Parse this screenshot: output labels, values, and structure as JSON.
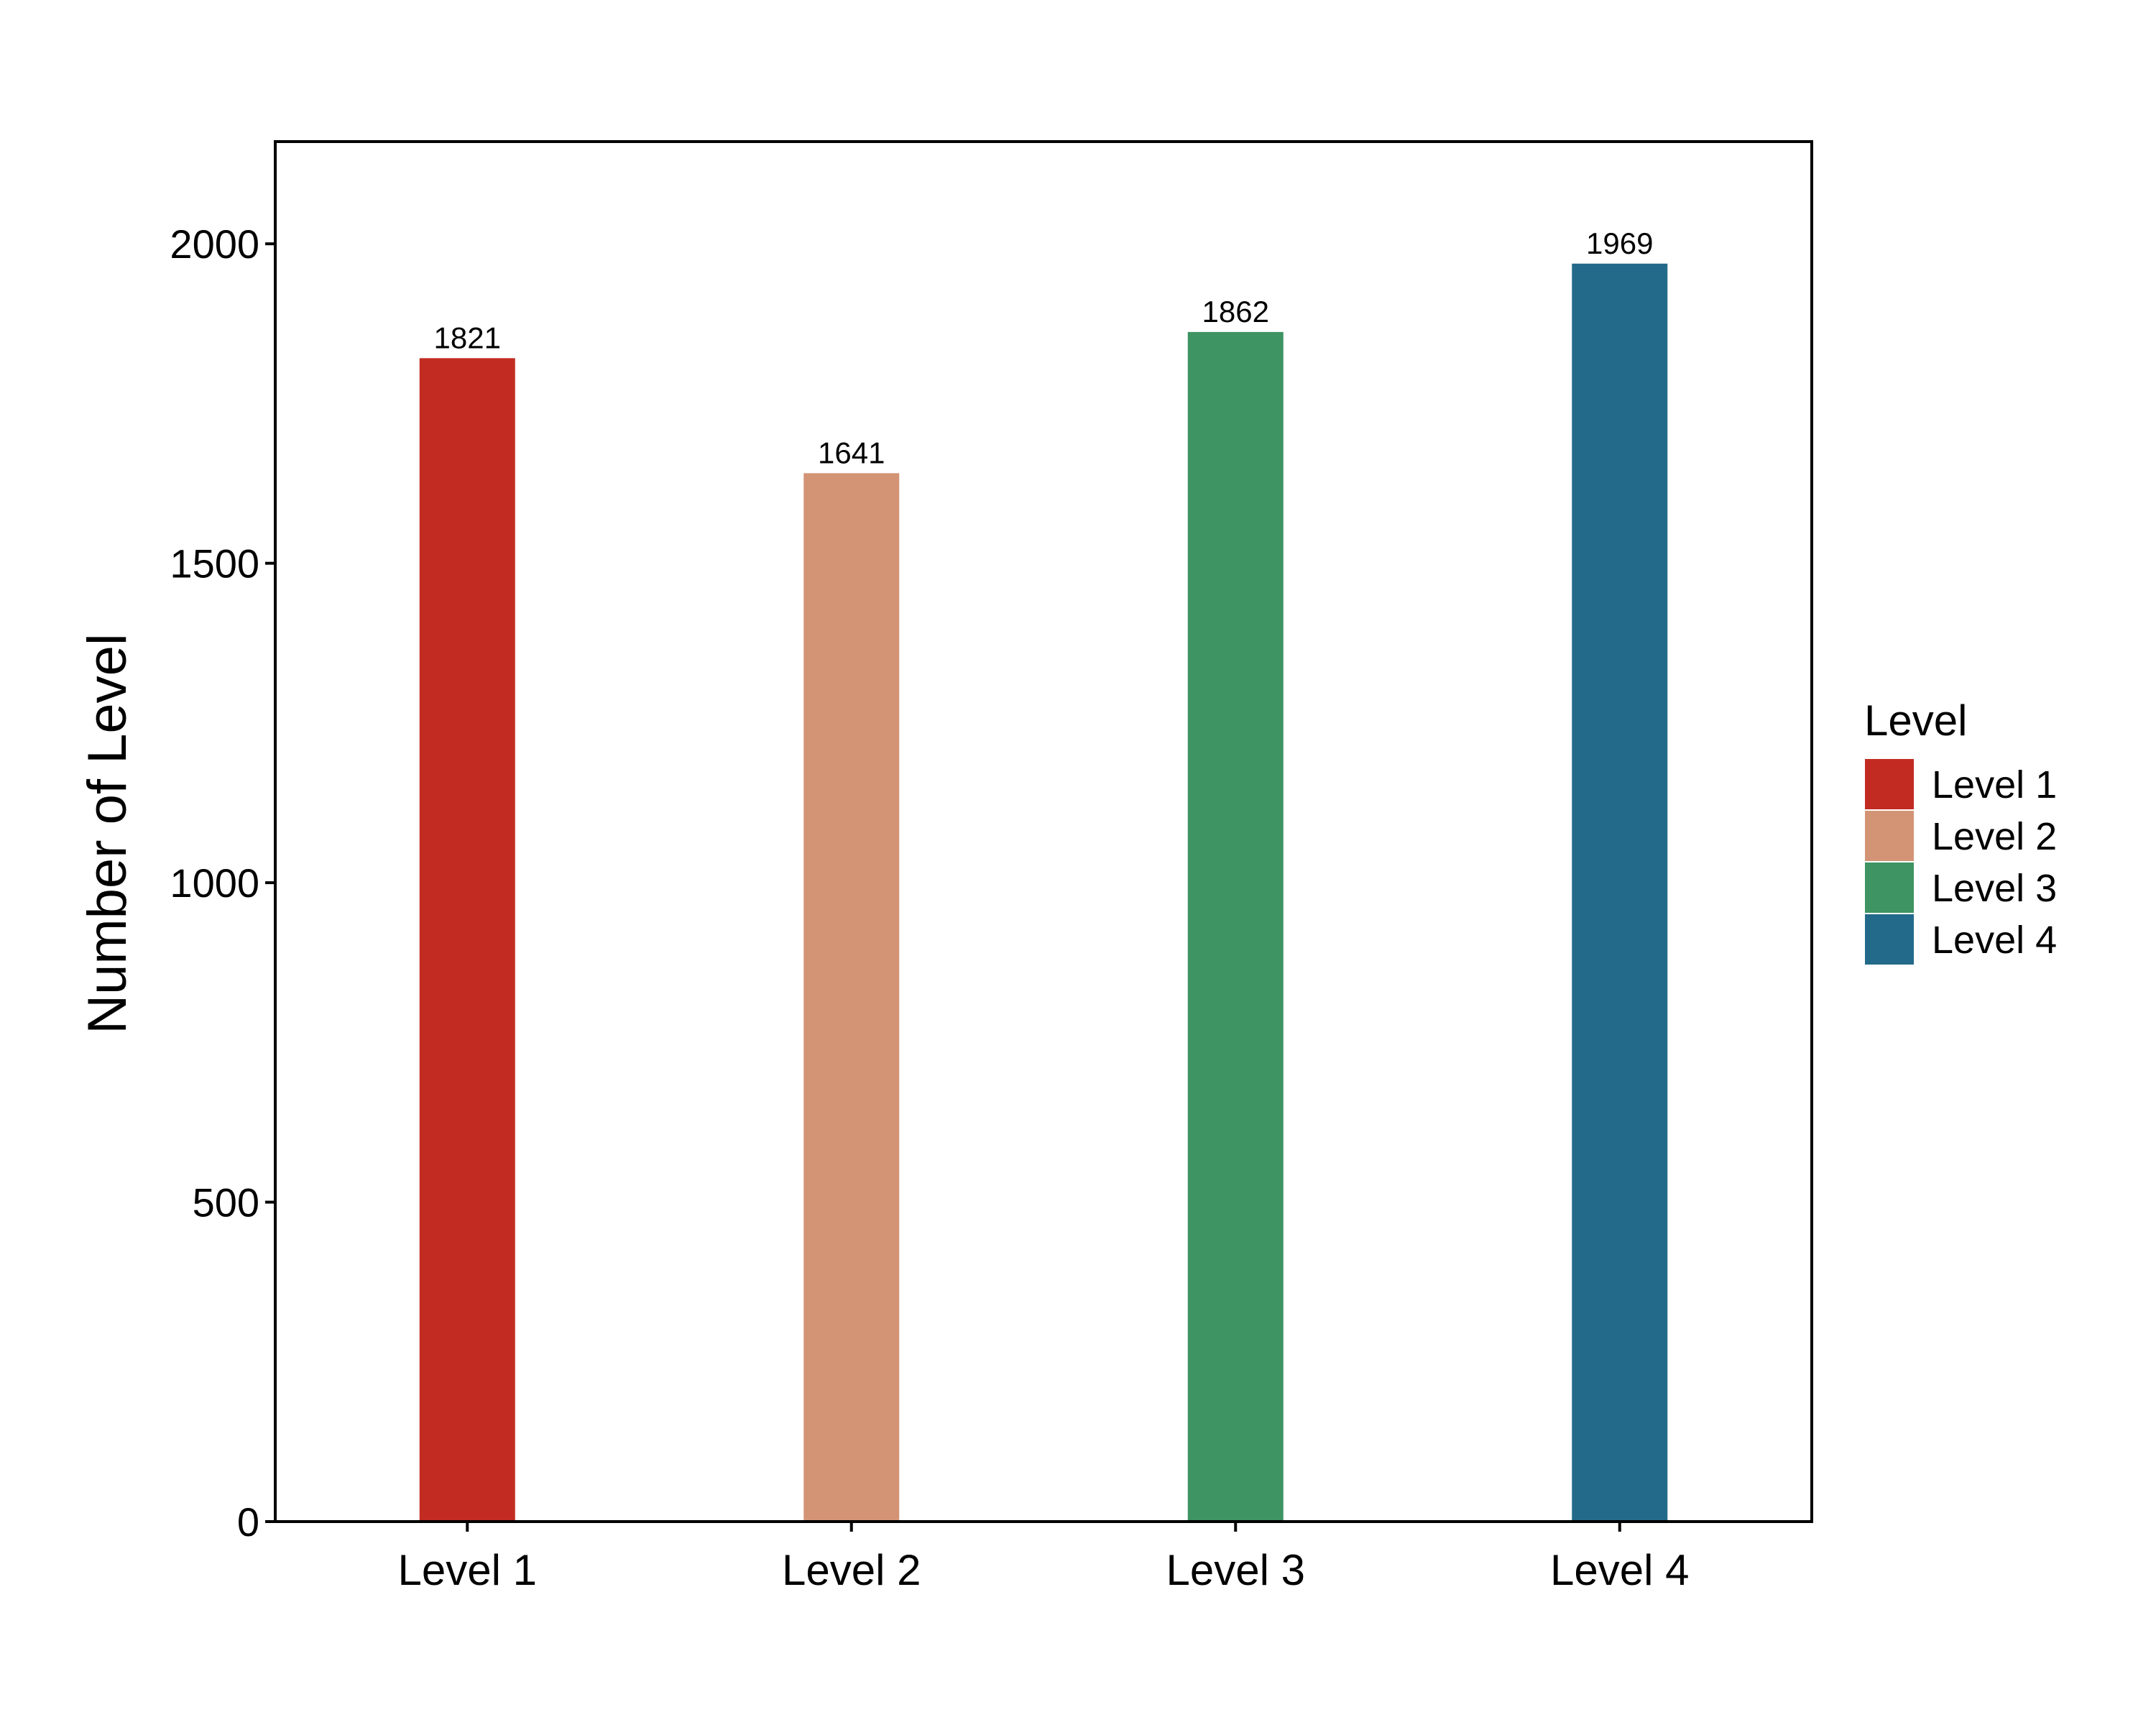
{
  "chart_data": {
    "type": "bar",
    "categories": [
      "Level 1",
      "Level 2",
      "Level 3",
      "Level 4"
    ],
    "values": [
      1821,
      1641,
      1862,
      1969
    ],
    "data_labels": [
      "1821",
      "1641",
      "1862",
      "1969"
    ],
    "colors": [
      "#C22B21",
      "#D39476",
      "#3E9462",
      "#236A8A"
    ],
    "xlabel": "",
    "ylabel": "Number of Level",
    "ylim": [
      0,
      2160
    ],
    "yticks": [
      0,
      500,
      1000,
      1500,
      2000
    ],
    "ytick_labels": [
      "0",
      "500",
      "1000",
      "1500",
      "2000"
    ],
    "grid": false,
    "legend": {
      "title": "Level",
      "placement": "right",
      "items": [
        "Level 1",
        "Level 2",
        "Level 3",
        "Level 4"
      ]
    }
  }
}
